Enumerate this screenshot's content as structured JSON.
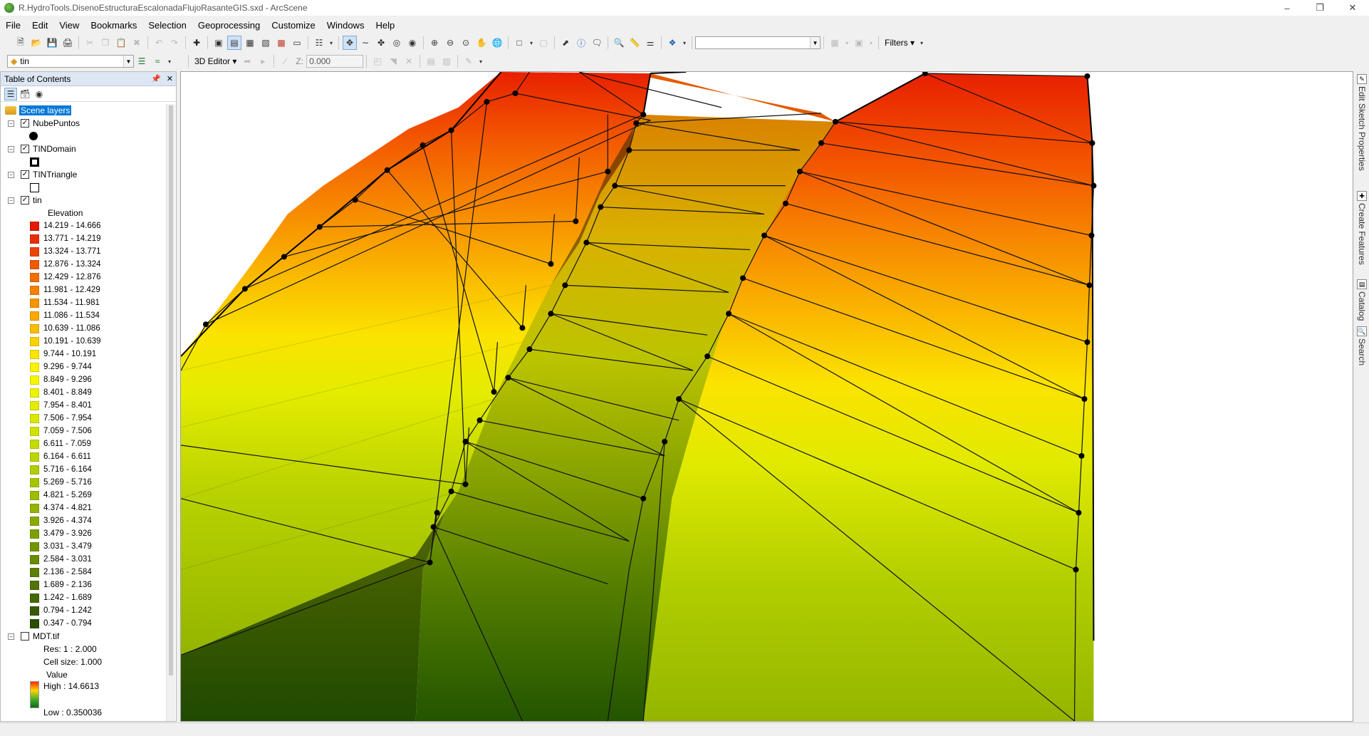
{
  "window": {
    "title": "R.HydroTools.DisenoEstructuraEscalonadaFlujoRasanteGIS.sxd - ArcScene"
  },
  "menu": [
    "File",
    "Edit",
    "View",
    "Bookmarks",
    "Selection",
    "Geoprocessing",
    "Customize",
    "Windows",
    "Help"
  ],
  "toolbar": {
    "filters_label": "Filters",
    "layer_combo_value": "tin",
    "editor_label": "3D Editor",
    "z_label": "Z:",
    "z_value": "0.000"
  },
  "toc": {
    "title": "Table of Contents",
    "root": "Scene layers",
    "layers": {
      "nube": "NubePuntos",
      "domain": "TINDomain",
      "triangle": "TINTriangle",
      "tin": "tin",
      "elevation_label": "Elevation",
      "mdt": "MDT.tif",
      "mdt_res": "Res: 1 : 2.000",
      "mdt_cell": "Cell size: 1.000",
      "mdt_value": "Value",
      "mdt_high": "High : 14.6613",
      "mdt_low": "Low : 0.350036"
    },
    "classes": [
      {
        "label": "14.219 - 14.666",
        "color": "#e41a00"
      },
      {
        "label": "13.771 - 14.219",
        "color": "#e82e00"
      },
      {
        "label": "13.324 - 13.771",
        "color": "#ec4500"
      },
      {
        "label": "12.876 - 13.324",
        "color": "#f05a00"
      },
      {
        "label": "12.429 - 12.876",
        "color": "#f36e00"
      },
      {
        "label": "11.981 - 12.429",
        "color": "#f68100"
      },
      {
        "label": "11.534 - 11.981",
        "color": "#f89500"
      },
      {
        "label": "11.086 - 11.534",
        "color": "#faa900"
      },
      {
        "label": "10.639 - 11.086",
        "color": "#fbbd00"
      },
      {
        "label": "10.191 - 10.639",
        "color": "#fcd100"
      },
      {
        "label": "9.744 - 10.191",
        "color": "#fde400"
      },
      {
        "label": "9.296 - 9.744",
        "color": "#fdf200"
      },
      {
        "label": "8.849 - 9.296",
        "color": "#f7f500"
      },
      {
        "label": "8.401 - 8.849",
        "color": "#eef200"
      },
      {
        "label": "7.954 - 8.401",
        "color": "#e4ed00"
      },
      {
        "label": "7.506 - 7.954",
        "color": "#dae800"
      },
      {
        "label": "7.059 - 7.506",
        "color": "#d0e300"
      },
      {
        "label": "6.611 - 7.059",
        "color": "#c5dc00"
      },
      {
        "label": "6.164 - 6.611",
        "color": "#bcd500"
      },
      {
        "label": "5.716 - 6.164",
        "color": "#b2ce00"
      },
      {
        "label": "5.269 - 5.716",
        "color": "#a8c600"
      },
      {
        "label": "4.821 - 5.269",
        "color": "#9dbd00"
      },
      {
        "label": "4.374 - 4.821",
        "color": "#93b400"
      },
      {
        "label": "3.926 - 4.374",
        "color": "#88aa00"
      },
      {
        "label": "3.479 - 3.926",
        "color": "#7da000"
      },
      {
        "label": "3.031 - 3.479",
        "color": "#729600"
      },
      {
        "label": "2.584 - 3.031",
        "color": "#678b00"
      },
      {
        "label": "2.136 - 2.584",
        "color": "#5c8000"
      },
      {
        "label": "1.689 - 2.136",
        "color": "#507400"
      },
      {
        "label": "1.242 - 1.689",
        "color": "#446800"
      },
      {
        "label": "0.794 - 1.242",
        "color": "#375b00"
      },
      {
        "label": "0.347 - 0.794",
        "color": "#2a4e00"
      }
    ]
  },
  "dock": {
    "tab1": "Edit Sketch Properties",
    "tab2": "Create Features",
    "tab3": "Catalog",
    "tab4": "Search"
  }
}
